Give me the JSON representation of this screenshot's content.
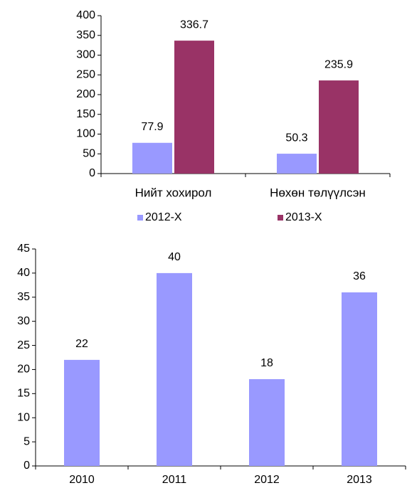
{
  "chart_data": [
    {
      "type": "bar",
      "categories": [
        "Нийт хохирол",
        "Нөхөн төлүүлсэн"
      ],
      "series": [
        {
          "name": "2012-Х",
          "color": "#9999ff",
          "values": [
            77.9,
            50.3
          ]
        },
        {
          "name": "2013-Х",
          "color": "#993366",
          "values": [
            336.7,
            235.9
          ]
        }
      ],
      "ylim": [
        0,
        400
      ],
      "yticks": [
        0,
        50,
        100,
        150,
        200,
        250,
        300,
        350,
        400
      ],
      "legend": "bottom",
      "grid": false
    },
    {
      "type": "bar",
      "categories": [
        "2010",
        "2011",
        "2012",
        "2013"
      ],
      "series": [
        {
          "color": "#9999ff",
          "values": [
            22,
            40,
            18,
            36
          ]
        }
      ],
      "ylim": [
        0,
        45
      ],
      "yticks": [
        0,
        5,
        10,
        15,
        20,
        25,
        30,
        35,
        40,
        45
      ],
      "grid": false
    }
  ]
}
